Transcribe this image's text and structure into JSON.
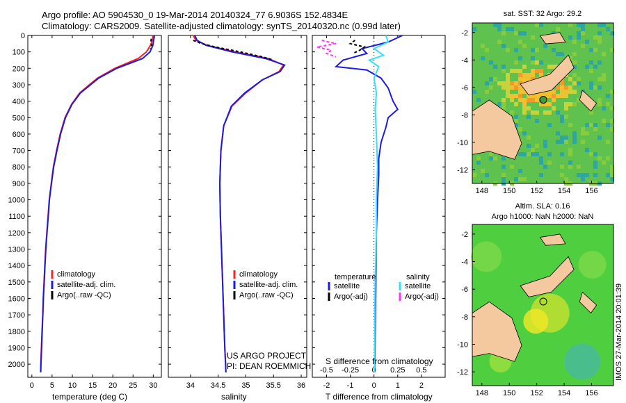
{
  "header": {
    "line1": "Argo profile: AO 5904530_0 19-Mar-2014 20140324_77 6.9036S 152.4834E",
    "line2": "Climatology: CARS2009. Satellite-adjusted climatology: synTS_20140320.nc (0.99d later)"
  },
  "colors": {
    "climatology": "#ff2020",
    "satellite": "#1a1ae6",
    "argo": "#000000",
    "sal_satellite": "#33e0ff",
    "sal_argo": "#ff33ff",
    "land": "#f5c9a0"
  },
  "project": {
    "line1": "US ARGO PROJECT",
    "line2": "PI: DEAN ROEMMICH"
  },
  "timestamp": "IMOS 27-Mar-2014 20:01:39",
  "chart_data": [
    {
      "id": "temperature",
      "type": "line",
      "xlabel": "temperature (deg C)",
      "xlim": [
        -1,
        32
      ],
      "ylim": [
        2080,
        0
      ],
      "xticks": [
        0,
        5,
        10,
        15,
        20,
        25,
        30
      ],
      "yticks": [
        0,
        100,
        200,
        300,
        400,
        500,
        600,
        700,
        800,
        900,
        1000,
        1100,
        1200,
        1300,
        1400,
        1500,
        1600,
        1700,
        1800,
        1900,
        2000
      ],
      "legend": [
        "climatology",
        "satellite-adj. clim.",
        "Argo(..raw -QC)"
      ],
      "series": [
        {
          "name": "climatology",
          "color": "#ff2020",
          "points": [
            [
              29.9,
              0
            ],
            [
              29.8,
              30
            ],
            [
              29.3,
              60
            ],
            [
              28.3,
              100
            ],
            [
              26.3,
              140
            ],
            [
              20.5,
              200
            ],
            [
              16.2,
              260
            ],
            [
              14.2,
              300
            ],
            [
              11.8,
              350
            ],
            [
              9.8,
              420
            ],
            [
              8.2,
              500
            ],
            [
              7.0,
              600
            ],
            [
              6.1,
              700
            ],
            [
              5.3,
              800
            ],
            [
              4.8,
              900
            ],
            [
              4.3,
              1000
            ],
            [
              4.0,
              1100
            ],
            [
              3.7,
              1200
            ],
            [
              3.4,
              1300
            ],
            [
              3.2,
              1400
            ],
            [
              3.0,
              1500
            ],
            [
              2.8,
              1600
            ],
            [
              2.7,
              1700
            ],
            [
              2.5,
              1800
            ],
            [
              2.35,
              1900
            ],
            [
              2.2,
              2000
            ],
            [
              2.15,
              2050
            ]
          ]
        },
        {
          "name": "satellite-adj. clim.",
          "color": "#1a1ae6",
          "points": [
            [
              30.3,
              0
            ],
            [
              30.1,
              30
            ],
            [
              29.9,
              60
            ],
            [
              29.2,
              100
            ],
            [
              27.4,
              140
            ],
            [
              21.0,
              200
            ],
            [
              16.5,
              260
            ],
            [
              14.5,
              300
            ],
            [
              12.0,
              350
            ],
            [
              9.9,
              420
            ],
            [
              8.3,
              500
            ],
            [
              7.1,
              600
            ],
            [
              6.2,
              700
            ],
            [
              5.4,
              800
            ],
            [
              4.85,
              900
            ],
            [
              4.35,
              1000
            ],
            [
              4.05,
              1100
            ],
            [
              3.75,
              1200
            ],
            [
              3.45,
              1300
            ],
            [
              3.25,
              1400
            ],
            [
              3.05,
              1500
            ],
            [
              2.85,
              1600
            ],
            [
              2.72,
              1700
            ],
            [
              2.55,
              1800
            ],
            [
              2.4,
              1900
            ],
            [
              2.25,
              2000
            ],
            [
              2.2,
              2050
            ]
          ]
        },
        {
          "name": "Argo(..raw -QC)",
          "color": "#000000",
          "dash": true,
          "points": [
            [
              29.5,
              20
            ],
            [
              29.4,
              40
            ],
            [
              29.6,
              60
            ],
            [
              29.3,
              80
            ]
          ]
        }
      ]
    },
    {
      "id": "salinity",
      "type": "line",
      "xlabel": "salinity",
      "xlim": [
        33.6,
        36.1
      ],
      "ylim": [
        2080,
        0
      ],
      "xticks": [
        34,
        34.5,
        35,
        35.5,
        36
      ],
      "legend": [
        "climatology",
        "satellite-adj. clim.",
        "Argo(..raw -QC)"
      ],
      "series": [
        {
          "name": "climatology",
          "color": "#ff2020",
          "points": [
            [
              34.05,
              0
            ],
            [
              34.1,
              30
            ],
            [
              34.3,
              60
            ],
            [
              34.8,
              100
            ],
            [
              35.4,
              140
            ],
            [
              35.68,
              180
            ],
            [
              35.6,
              220
            ],
            [
              35.3,
              270
            ],
            [
              35.0,
              350
            ],
            [
              34.75,
              430
            ],
            [
              34.6,
              550
            ],
            [
              34.55,
              700
            ],
            [
              34.53,
              900
            ],
            [
              34.54,
              1100
            ],
            [
              34.56,
              1300
            ],
            [
              34.58,
              1500
            ],
            [
              34.6,
              1700
            ],
            [
              34.62,
              1900
            ],
            [
              34.64,
              2050
            ]
          ]
        },
        {
          "name": "satellite-adj. clim.",
          "color": "#1a1ae6",
          "points": [
            [
              34.08,
              0
            ],
            [
              34.12,
              30
            ],
            [
              34.28,
              60
            ],
            [
              34.75,
              100
            ],
            [
              35.35,
              140
            ],
            [
              35.7,
              180
            ],
            [
              35.62,
              220
            ],
            [
              35.3,
              270
            ],
            [
              34.98,
              350
            ],
            [
              34.74,
              430
            ],
            [
              34.6,
              550
            ],
            [
              34.55,
              700
            ],
            [
              34.53,
              900
            ],
            [
              34.54,
              1100
            ],
            [
              34.56,
              1300
            ],
            [
              34.58,
              1500
            ],
            [
              34.6,
              1700
            ],
            [
              34.62,
              1900
            ],
            [
              34.64,
              2050
            ]
          ]
        },
        {
          "name": "Argo(..raw -QC)",
          "color": "#000000",
          "dash": true,
          "points": [
            [
              34.05,
              30
            ],
            [
              34.2,
              50
            ],
            [
              34.45,
              70
            ],
            [
              34.9,
              100
            ],
            [
              35.3,
              130
            ],
            [
              35.5,
              150
            ]
          ]
        }
      ]
    },
    {
      "id": "difference",
      "type": "line",
      "xlabel": "T difference from climatology",
      "xlabel2": "S difference from climatology",
      "xlim": [
        -2.6,
        3.0
      ],
      "ylim": [
        2080,
        0
      ],
      "xticks": [
        -2,
        -1,
        0,
        1,
        2
      ],
      "xticks2": [
        "-0.5",
        "-0.25",
        "0",
        "0.25",
        "0.5"
      ],
      "xticks2_pos": [
        -2,
        -1,
        0,
        1,
        2
      ],
      "legend_title_t": "temperature",
      "legend_title_s": "salinity",
      "legend_t": [
        "satellite",
        "Argo(-adj)"
      ],
      "legend_s": [
        "satellite",
        "Argo(-adj)"
      ],
      "series": [
        {
          "name": "T satellite",
          "color": "#1a1ae6",
          "points": [
            [
              1.2,
              0
            ],
            [
              0.6,
              40
            ],
            [
              -0.5,
              80
            ],
            [
              -0.3,
              110
            ],
            [
              -1.3,
              150
            ],
            [
              -1.6,
              190
            ],
            [
              -0.3,
              210
            ],
            [
              0.3,
              260
            ],
            [
              0.6,
              320
            ],
            [
              0.8,
              400
            ],
            [
              1.0,
              450
            ],
            [
              0.6,
              500
            ],
            [
              0.5,
              560
            ],
            [
              0.3,
              650
            ],
            [
              0.2,
              750
            ],
            [
              0.2,
              850
            ],
            [
              0.15,
              1000
            ],
            [
              0.1,
              1200
            ],
            [
              0.08,
              1500
            ],
            [
              0.05,
              1800
            ],
            [
              0.03,
              2050
            ]
          ]
        },
        {
          "name": "S satellite",
          "color": "#33e0ff",
          "points": [
            [
              0.5,
              0
            ],
            [
              0.6,
              40
            ],
            [
              0.0,
              80
            ],
            [
              0.4,
              120
            ],
            [
              -0.2,
              150
            ],
            [
              0.2,
              190
            ],
            [
              0.0,
              260
            ],
            [
              0.1,
              350
            ],
            [
              0.05,
              450
            ],
            [
              0.1,
              600
            ],
            [
              0.15,
              800
            ],
            [
              0.1,
              1000
            ],
            [
              0.1,
              1200
            ],
            [
              0.05,
              1500
            ],
            [
              0.03,
              1800
            ],
            [
              0.02,
              2050
            ]
          ]
        },
        {
          "name": "T Argo(-adj)",
          "color": "#000000",
          "dash": true,
          "points": [
            [
              -0.8,
              30
            ],
            [
              -1.0,
              50
            ],
            [
              -0.4,
              70
            ],
            [
              -0.6,
              90
            ],
            [
              -0.9,
              110
            ]
          ]
        },
        {
          "name": "S Argo(-adj)",
          "color": "#ff33ff",
          "dash": true,
          "points": [
            [
              -2.2,
              30
            ],
            [
              -1.6,
              50
            ],
            [
              -2.4,
              70
            ],
            [
              -1.8,
              90
            ],
            [
              -2.0,
              110
            ],
            [
              -1.6,
              130
            ]
          ]
        }
      ]
    },
    {
      "id": "sst-map",
      "type": "heatmap",
      "title": "sat. SST: 32 Argo: 29.2",
      "xticks": [
        148,
        150,
        152,
        154,
        156
      ],
      "yticks": [
        -2,
        -4,
        -6,
        -8,
        -10,
        -12
      ],
      "xlim": [
        147.3,
        157.6
      ],
      "ylim": [
        -1.3,
        -13.0
      ],
      "argo_location": [
        152.48,
        -6.9
      ]
    },
    {
      "id": "sla-map",
      "type": "heatmap",
      "title": "Altim. SLA: 0.16",
      "subtitle": "Argo h1000: NaN h2000: NaN",
      "xticks": [
        148,
        150,
        152,
        154,
        156
      ],
      "yticks": [
        -2,
        -4,
        -6,
        -8,
        -10,
        -12
      ],
      "xlim": [
        147.3,
        157.6
      ],
      "ylim": [
        -1.3,
        -13.0
      ],
      "argo_location": [
        152.48,
        -6.9
      ]
    }
  ]
}
